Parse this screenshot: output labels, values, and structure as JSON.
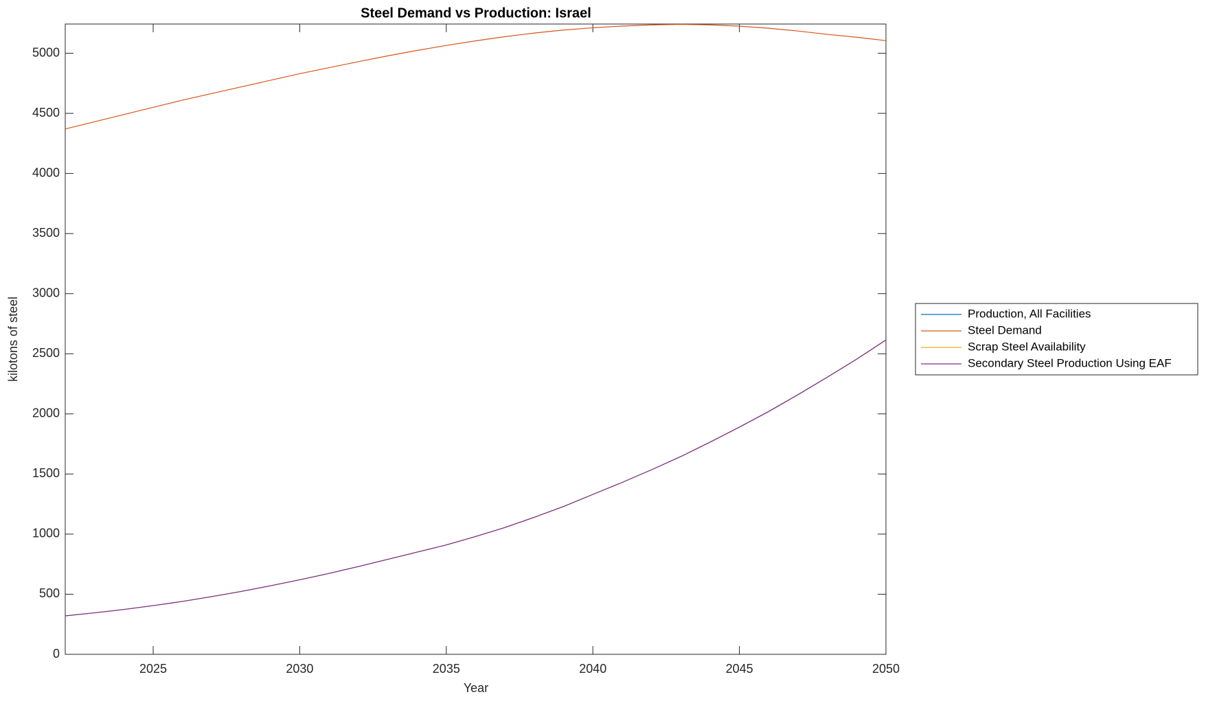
{
  "chart_data": {
    "type": "line",
    "title": "Steel Demand vs Production: Israel",
    "x_label": "Year",
    "y_label": "kilotons of steel",
    "x": [
      2022,
      2023,
      2024,
      2025,
      2026,
      2027,
      2028,
      2029,
      2030,
      2031,
      2032,
      2033,
      2034,
      2035,
      2036,
      2037,
      2038,
      2039,
      2040,
      2041,
      2042,
      2043,
      2044,
      2045,
      2046,
      2047,
      2048,
      2049,
      2050
    ],
    "series": [
      {
        "name": "Production, All Facilities",
        "color": "#0072BD",
        "values": [
          320,
          345,
          373,
          405,
          440,
          480,
          523,
          570,
          620,
          673,
          730,
          790,
          850,
          910,
          980,
          1055,
          1140,
          1230,
          1330,
          1430,
          1535,
          1645,
          1765,
          1890,
          2020,
          2160,
          2305,
          2455,
          2615
        ]
      },
      {
        "name": "Steel Demand",
        "color": "#D95319",
        "values": [
          4370,
          4430,
          4490,
          4550,
          4610,
          4665,
          4720,
          4775,
          4830,
          4880,
          4930,
          4978,
          5023,
          5065,
          5103,
          5138,
          5168,
          5193,
          5212,
          5226,
          5236,
          5240,
          5236,
          5225,
          5208,
          5185,
          5157,
          5133,
          5105
        ]
      },
      {
        "name": "Scrap Steel Availability",
        "color": "#EDB120",
        "values": [
          320,
          345,
          373,
          405,
          440,
          480,
          523,
          570,
          620,
          673,
          730,
          790,
          850,
          910,
          980,
          1055,
          1140,
          1230,
          1330,
          1430,
          1535,
          1645,
          1765,
          1890,
          2020,
          2160,
          2305,
          2455,
          2615
        ]
      },
      {
        "name": "Secondary Steel Production Using EAF",
        "color": "#7E2F8E",
        "values": [
          320,
          345,
          373,
          405,
          440,
          480,
          523,
          570,
          620,
          673,
          730,
          790,
          850,
          910,
          980,
          1055,
          1140,
          1230,
          1330,
          1430,
          1535,
          1645,
          1765,
          1890,
          2020,
          2160,
          2305,
          2455,
          2615
        ]
      }
    ],
    "xlim": [
      2022,
      2050
    ],
    "xticks": [
      2025,
      2030,
      2035,
      2040,
      2045,
      2050
    ],
    "ylim": [
      0,
      5243
    ],
    "yticks": [
      0,
      500,
      1000,
      1500,
      2000,
      2500,
      3000,
      3500,
      4000,
      4500,
      5000
    ],
    "grid": false,
    "legend": "outside-right"
  }
}
